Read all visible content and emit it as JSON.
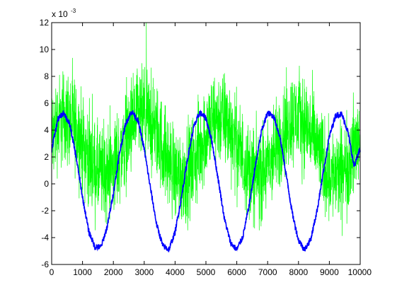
{
  "chart_data": {
    "type": "line",
    "title": "",
    "xlabel": "",
    "ylabel": "",
    "y_exponent_label": "x 10",
    "y_exponent_power": "-3",
    "xlim": [
      0,
      10000
    ],
    "ylim": [
      -6,
      12
    ],
    "x_ticks": [
      0,
      1000,
      2000,
      3000,
      4000,
      5000,
      6000,
      7000,
      8000,
      9000,
      10000
    ],
    "y_ticks": [
      -6,
      -4,
      -2,
      0,
      2,
      4,
      6,
      8,
      10,
      12
    ],
    "x_tick_labels": [
      "0",
      "1000",
      "2000",
      "3000",
      "4000",
      "5000",
      "6000",
      "7000",
      "8000",
      "9000",
      "10000"
    ],
    "y_tick_labels": [
      "-6",
      "-4",
      "-2",
      "0",
      "2",
      "4",
      "6",
      "8",
      "10",
      "12"
    ],
    "grid": false,
    "legend": "none",
    "series": [
      {
        "color": "#00ff00",
        "style": "noisy",
        "noise_amplitude": 3.5,
        "x": [
          0,
          200,
          400,
          600,
          800,
          1000,
          1200,
          1400,
          1600,
          1800,
          2000,
          2200,
          2400,
          2600,
          2800,
          3000,
          3200,
          3400,
          3600,
          3800,
          4000,
          4200,
          4400,
          4600,
          4800,
          5000,
          5200,
          5400,
          5600,
          5800,
          6000,
          6200,
          6400,
          6600,
          6800,
          7000,
          7200,
          7400,
          7600,
          7800,
          8000,
          8200,
          8400,
          8600,
          8800,
          9000,
          9200,
          9400,
          9600,
          9800,
          10000
        ],
        "y": [
          3.6,
          4.5,
          5.0,
          4.8,
          4.1,
          3.0,
          1.9,
          1.0,
          0.6,
          0.7,
          1.2,
          2.1,
          3.2,
          4.2,
          4.9,
          5.0,
          4.6,
          3.8,
          2.7,
          1.6,
          0.8,
          0.5,
          0.8,
          1.5,
          2.6,
          3.7,
          4.6,
          5.0,
          4.8,
          4.1,
          3.0,
          1.9,
          1.0,
          0.6,
          0.7,
          1.2,
          2.1,
          3.2,
          4.2,
          4.9,
          5.0,
          4.6,
          3.8,
          2.7,
          1.6,
          0.8,
          0.5,
          0.8,
          1.5,
          2.6,
          3.6
        ]
      },
      {
        "color": "#0000ff",
        "style": "sinusoid",
        "x": [
          0,
          200,
          400,
          600,
          800,
          1000,
          1200,
          1400,
          1600,
          1800,
          2000,
          2200,
          2400,
          2600,
          2800,
          3000,
          3200,
          3400,
          3600,
          3800,
          4000,
          4200,
          4400,
          4600,
          4800,
          5000,
          5200,
          5400,
          5600,
          5800,
          6000,
          6200,
          6400,
          6600,
          6800,
          7000,
          7200,
          7400,
          7600,
          7800,
          8000,
          8200,
          8400,
          8600,
          8800,
          9000,
          9200,
          9400,
          9600,
          9800,
          10000
        ],
        "y": [
          2.6,
          4.8,
          5.3,
          4.3,
          1.9,
          -1.0,
          -3.5,
          -4.7,
          -4.7,
          -3.2,
          -0.7,
          2.3,
          4.5,
          5.4,
          4.7,
          2.6,
          -0.3,
          -3.0,
          -4.6,
          -4.9,
          -3.6,
          -1.1,
          1.8,
          4.2,
          5.3,
          4.9,
          3.1,
          0.3,
          -2.6,
          -4.4,
          -4.9,
          -3.9,
          -1.6,
          1.3,
          3.9,
          5.3,
          5.0,
          3.5,
          0.7,
          -2.2,
          -4.2,
          -4.9,
          -4.1,
          -2.0,
          0.8,
          3.5,
          5.1,
          5.2,
          3.9,
          1.3,
          2.6
        ]
      }
    ]
  }
}
